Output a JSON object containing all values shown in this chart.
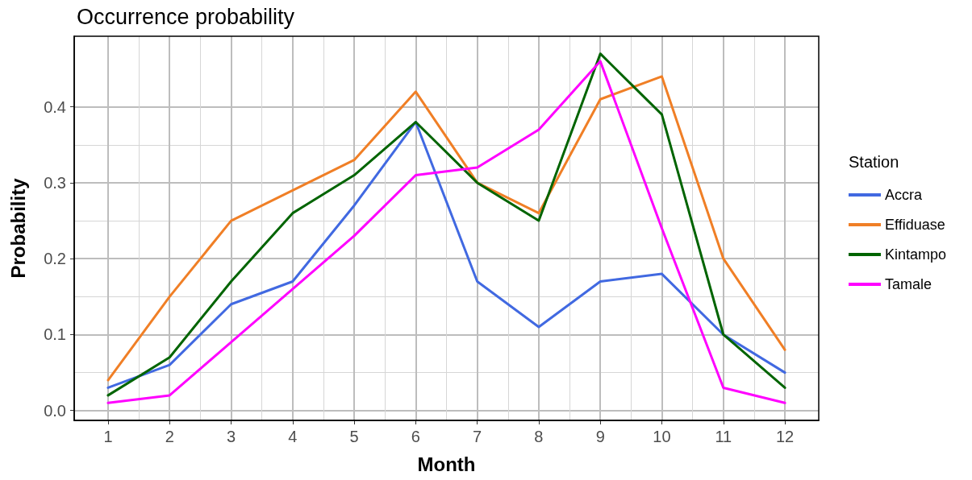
{
  "chart_data": {
    "type": "line",
    "title": "Occurrence probability",
    "xlabel": "Month",
    "ylabel": "Probability",
    "legend_title": "Station",
    "legend": "right",
    "grid": true,
    "marker": "none",
    "line_style": "solid",
    "x": [
      1,
      2,
      3,
      4,
      5,
      6,
      7,
      8,
      9,
      10,
      11,
      12
    ],
    "xlim": [
      0.45,
      12.55
    ],
    "xticks": [
      1,
      2,
      3,
      4,
      5,
      6,
      7,
      8,
      9,
      10,
      11,
      12
    ],
    "ylim": [
      -0.013,
      0.493
    ],
    "yticks": [
      {
        "value": 0,
        "label": "0.0"
      },
      0.1,
      0.2,
      0.3,
      0.4
    ],
    "series": [
      {
        "name": "Accra",
        "color": "#4169e1",
        "values": [
          0.03,
          0.06,
          0.14,
          0.17,
          0.27,
          0.38,
          0.17,
          0.11,
          0.17,
          0.18,
          0.1,
          0.05
        ]
      },
      {
        "name": "Effiduase",
        "color": "#f07f26",
        "values": [
          0.04,
          0.15,
          0.25,
          0.29,
          0.33,
          0.42,
          0.3,
          0.26,
          0.41,
          0.44,
          0.2,
          0.08
        ]
      },
      {
        "name": "Kintampo",
        "color": "#006400",
        "values": [
          0.02,
          0.07,
          0.17,
          0.26,
          0.31,
          0.38,
          0.3,
          0.25,
          0.47,
          0.39,
          0.1,
          0.03
        ]
      },
      {
        "name": "Tamale",
        "color": "#ff00ff",
        "values": [
          0.01,
          0.02,
          0.09,
          0.16,
          0.23,
          0.31,
          0.32,
          0.37,
          0.46,
          0.24,
          0.03,
          0.01
        ]
      }
    ]
  }
}
